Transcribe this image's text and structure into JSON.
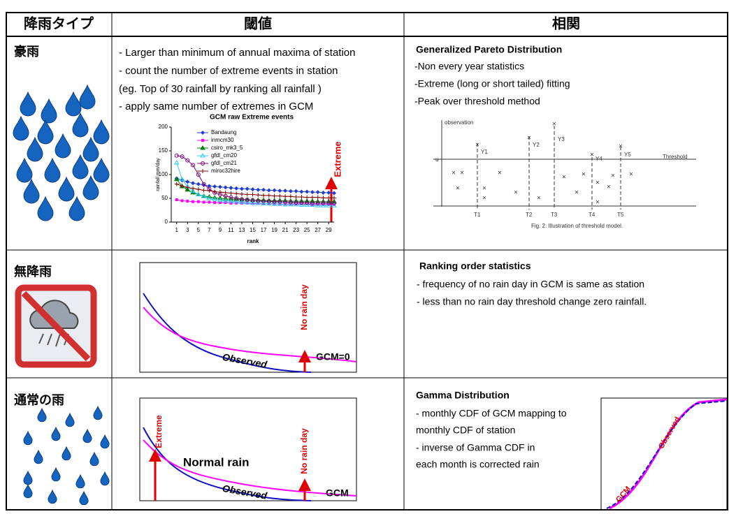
{
  "header": [
    "降雨タイプ",
    "閾値",
    "相関"
  ],
  "rows": [
    {
      "type": "豪雨",
      "threshold": [
        "- Larger than minimum of annual maxima of station",
        "- count the number of extreme events in station",
        " (eg. Top of 30 rainfall by ranking all rainfall )",
        "- apply same number of extremes in GCM"
      ],
      "chart_annotation": "Extreme",
      "correlation": {
        "title": "Generalized Pareto Distribution",
        "lines": [
          "-Non every year statistics",
          "-Extreme (long or short tailed) fitting",
          "-Peak over threshold method"
        ]
      },
      "figure": {
        "axis_label": "observation",
        "threshold_label": "Threshold",
        "u_label": "u",
        "peaks": [
          "Y1",
          "Y2",
          "Y3",
          "Y4",
          "Y5"
        ],
        "times": [
          "T1",
          "T2",
          "T3",
          "T4",
          "T5"
        ],
        "caption": "Fig. 2. Illustration of threshold model."
      }
    },
    {
      "type": "無降雨",
      "sketch": {
        "no_rain_day": "No rain day",
        "gcm": "GCM=0",
        "observed": "Observed"
      },
      "correlation": {
        "title": "Ranking order statistics",
        "lines": [
          "- frequency of no rain day in GCM is same as station",
          "- less than no rain day threshold change zero rainfall."
        ]
      }
    },
    {
      "type": "通常の雨",
      "sketch": {
        "extreme": "Extreme",
        "normal": "Normal rain",
        "no_rain_day": "No rain day",
        "observed": "Observed",
        "gcm": "GCM"
      },
      "correlation": {
        "title": "Gamma Distribution",
        "lines": [
          "- monthly CDF of GCM mapping to",
          " monthly CDF of station",
          "- inverse of Gamma CDF in",
          "each month is corrected rain"
        ]
      },
      "cdf": {
        "observed": "Observed",
        "gcm": "GCM"
      }
    }
  ],
  "chart_data": {
    "type": "line",
    "title": "GCM raw Extreme events",
    "ylabel": "rainfall mm/day",
    "xlabel": "rank",
    "x": [
      1,
      2,
      3,
      4,
      5,
      6,
      7,
      8,
      9,
      10,
      11,
      12,
      13,
      14,
      15,
      16,
      17,
      18,
      19,
      20,
      21,
      22,
      23,
      24,
      25,
      26,
      27,
      28,
      29,
      30
    ],
    "xlim": [
      0,
      30
    ],
    "xticks": [
      1,
      3,
      5,
      7,
      9,
      11,
      13,
      15,
      17,
      19,
      21,
      23,
      25,
      27,
      29
    ],
    "ylim": [
      0,
      200
    ],
    "yticks": [
      0,
      50,
      100,
      150,
      200
    ],
    "series": [
      {
        "name": "Bandaung",
        "color": "#1f3fd0",
        "marker": "diamond",
        "values": [
          92,
          88,
          85,
          82,
          80,
          78,
          76,
          75,
          74,
          73,
          72,
          71,
          70,
          70,
          69,
          68,
          68,
          67,
          67,
          66,
          66,
          65,
          65,
          64,
          64,
          63,
          63,
          62,
          62,
          61
        ]
      },
      {
        "name": "inmcm30",
        "color": "#ff00ff",
        "marker": "square",
        "values": [
          47,
          45,
          44,
          43,
          43,
          42,
          42,
          41,
          41,
          41,
          40,
          40,
          40,
          40,
          39,
          39,
          39,
          39,
          39,
          38,
          38,
          38,
          38,
          38,
          38,
          37,
          37,
          37,
          37,
          37
        ]
      },
      {
        "name": "csiro_mk3_5",
        "color": "#008000",
        "marker": "triangle",
        "values": [
          90,
          75,
          68,
          62,
          58,
          55,
          53,
          51,
          50,
          49,
          48,
          48,
          47,
          47,
          46,
          46,
          46,
          45,
          45,
          45,
          45,
          44,
          44,
          44,
          44,
          44,
          43,
          43,
          43,
          43
        ]
      },
      {
        "name": "gfdl_cm20",
        "color": "#33ccff",
        "marker": "triangle-open",
        "values": [
          125,
          90,
          75,
          65,
          58,
          54,
          50,
          48,
          46,
          45,
          44,
          43,
          42,
          41,
          40,
          40,
          39,
          39,
          38,
          38,
          37,
          37,
          37,
          36,
          36,
          36,
          35,
          35,
          35,
          35
        ]
      },
      {
        "name": "gfdl_cm21",
        "color": "#800080",
        "marker": "circle-open",
        "values": [
          140,
          138,
          130,
          120,
          100,
          80,
          70,
          62,
          58,
          55,
          52,
          50,
          48,
          47,
          46,
          45,
          44,
          44,
          43,
          43,
          42,
          42,
          41,
          41,
          41,
          40,
          40,
          40,
          40,
          40
        ]
      },
      {
        "name": "miroc32hire",
        "color": "#800000",
        "marker": "plus",
        "values": [
          80,
          76,
          73,
          71,
          69,
          67,
          66,
          64,
          63,
          62,
          61,
          60,
          59,
          58,
          58,
          57,
          56,
          56,
          55,
          55,
          54,
          54,
          53,
          53,
          52,
          52,
          52,
          51,
          51,
          51
        ]
      }
    ]
  }
}
